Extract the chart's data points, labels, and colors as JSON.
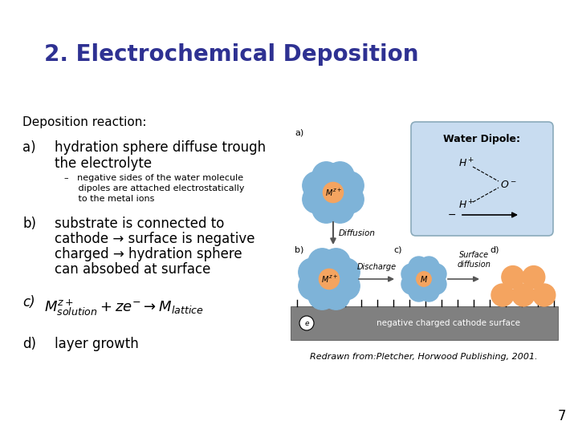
{
  "title": "2. Electrochemical Deposition",
  "title_color": "#2E3192",
  "title_fontsize": 20,
  "background_color": "#FFFFFF",
  "slide_number": "7",
  "deposition_header": "Deposition reaction:",
  "item_a_line1": "hydration sphere diffuse trough",
  "item_a_line2": "the electrolyte",
  "item_a_sub1": "–   negative sides of the water molecule",
  "item_a_sub2": "     dipoles are attached electrostatically",
  "item_a_sub3": "     to the metal ions",
  "item_b_line1": "substrate is connected to",
  "item_b_line2": "cathode → surface is negative",
  "item_b_line3": "charged → hydration sphere",
  "item_b_line4": "can absobed at surface",
  "item_d_main": "layer growth",
  "caption": "Redrawn from:Pletcher, Horwood Publishing, 2001.",
  "blue_color": "#7EB3D8",
  "orange_color": "#F4A460",
  "arrow_color": "#555555",
  "cathode_color": "#808080",
  "dipole_box_color": "#C8DCF0",
  "dipole_box_edge": "#8AAABB"
}
